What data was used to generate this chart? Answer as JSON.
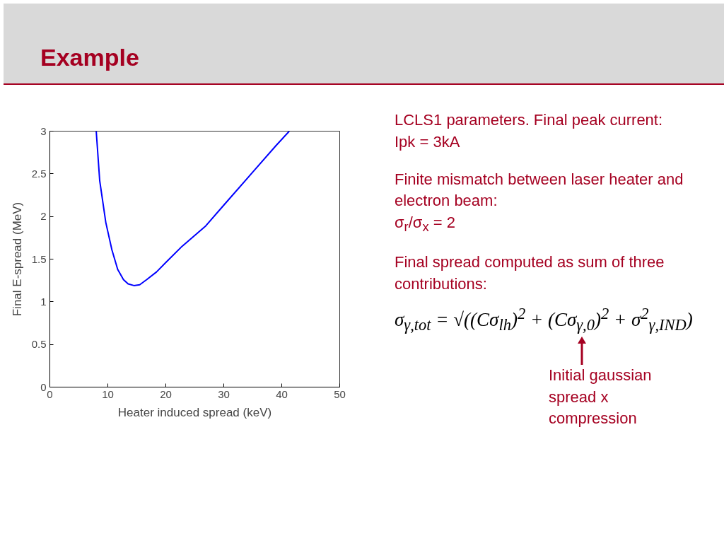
{
  "chart_data": {
    "type": "line",
    "title": "Example",
    "xlabel": "Heater induced spread (keV)",
    "ylabel": "Final E-spread (MeV)",
    "x": [
      8.0,
      8.6,
      9.65,
      10.7,
      11.7,
      12.7,
      13.5,
      14.5,
      15.5,
      16.7,
      18.4,
      20,
      22.8,
      26.9,
      30.1,
      35,
      39,
      41.3
    ],
    "series": [
      {
        "color": "#0000ff",
        "values": [
          3.0,
          2.42,
          1.93,
          1.61,
          1.38,
          1.26,
          1.21,
          1.19,
          1.2,
          1.26,
          1.35,
          1.46,
          1.65,
          1.89,
          2.14,
          2.52,
          2.83,
          3.0
        ]
      }
    ],
    "xlim": [
      0,
      50
    ],
    "ylim": [
      0,
      3
    ],
    "xticks": [
      0,
      10,
      20,
      30,
      40,
      50
    ],
    "yticks": [
      0,
      0.5,
      1,
      1.5,
      2,
      2.5,
      3
    ],
    "grid": false,
    "marker": "none",
    "line_style": "solid",
    "annotations": [
      "LCLS1 parameters. Final peak current:",
      "Ipk = 3kA",
      "Finite mismatch between laser heater and electron beam:",
      "σ$_{r}$/σ$_{x}$ = 2",
      "Final spread computed as sum of three contributions:",
      "σ$_{γ,tot}$ = √((Cσ$_{lh}$)$^{2}$ + (Cσ$_{γ,0}$)$^{2}$ + σ$^{2}$$_{γ,IND}$)",
      "Initial gaussian spread x compression"
    ]
  }
}
